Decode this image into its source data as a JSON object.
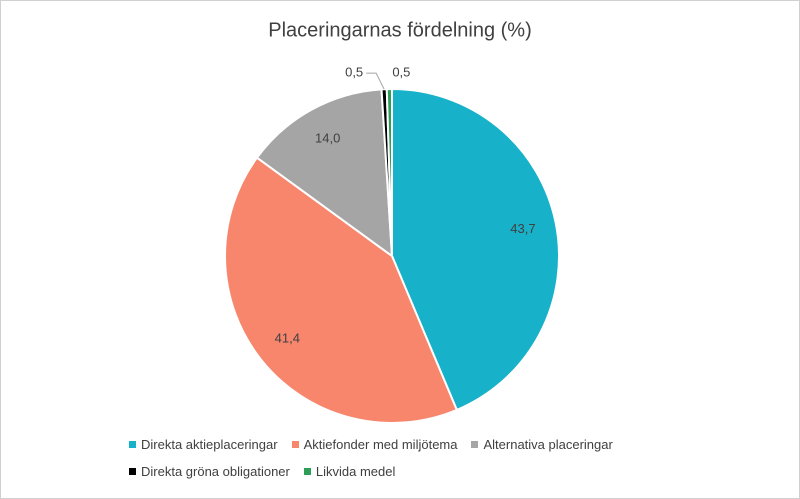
{
  "chart_data": {
    "type": "pie",
    "title": "Placeringarnas fördelning (%)",
    "categories": [
      "Direkta aktieplaceringar",
      "Aktiefonder med miljötema",
      "Alternativa placeringar",
      "Direkta gröna obligationer",
      "Likvida medel"
    ],
    "values": [
      43.7,
      41.4,
      14.0,
      0.5,
      0.5
    ],
    "value_labels": [
      "43,7",
      "41,4",
      "14,0",
      "0,5",
      "0,5"
    ],
    "colors": [
      "#17b1c9",
      "#f7866d",
      "#a5a5a5",
      "#000000",
      "#2e9d57"
    ]
  }
}
